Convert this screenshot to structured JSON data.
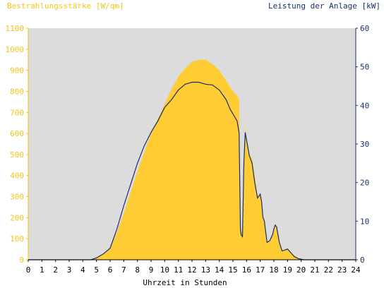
{
  "chart_data": {
    "type": "area",
    "y_left_label": "Bestrahlungsstärke [W/qm]",
    "y_right_label": "Leistung der Anlage [kW]",
    "xlabel": "Uhrzeit in Stunden",
    "xlim": [
      0,
      24
    ],
    "ylim_left": [
      0,
      1100
    ],
    "ylim_right": [
      0,
      60
    ],
    "x_ticks": [
      0,
      1,
      2,
      3,
      4,
      5,
      6,
      7,
      8,
      9,
      10,
      11,
      12,
      13,
      14,
      15,
      16,
      17,
      18,
      19,
      20,
      21,
      22,
      23,
      24
    ],
    "y_left_ticks": [
      0,
      100,
      200,
      300,
      400,
      500,
      600,
      700,
      800,
      900,
      1000,
      1100
    ],
    "y_right_ticks": [
      0,
      10,
      20,
      30,
      40,
      50,
      60
    ],
    "grid": false,
    "colors": {
      "plot_background": "#dcdcdc",
      "irradiance_fill": "#ffcc33",
      "power_line": "#1b2f6b",
      "left_axis": "#f4c41a",
      "right_axis": "#1b2f6b"
    },
    "series": [
      {
        "axis": "left",
        "style": "area",
        "points": [
          [
            0,
            0
          ],
          [
            4.6,
            0
          ],
          [
            5.0,
            10
          ],
          [
            5.5,
            25
          ],
          [
            6.0,
            60
          ],
          [
            6.5,
            130
          ],
          [
            7.0,
            220
          ],
          [
            7.5,
            320
          ],
          [
            8.0,
            420
          ],
          [
            8.5,
            510
          ],
          [
            9.0,
            600
          ],
          [
            9.5,
            670
          ],
          [
            10.0,
            740
          ],
          [
            10.5,
            810
          ],
          [
            11.0,
            870
          ],
          [
            11.5,
            910
          ],
          [
            12.0,
            940
          ],
          [
            12.5,
            950
          ],
          [
            13.0,
            950
          ],
          [
            13.5,
            930
          ],
          [
            14.0,
            900
          ],
          [
            14.5,
            850
          ],
          [
            15.0,
            800
          ],
          [
            15.3,
            780
          ],
          [
            15.45,
            760
          ],
          [
            15.5,
            400
          ],
          [
            15.55,
            180
          ],
          [
            15.6,
            140
          ],
          [
            15.7,
            130
          ],
          [
            15.8,
            450
          ],
          [
            15.9,
            630
          ],
          [
            16.0,
            580
          ],
          [
            16.2,
            500
          ],
          [
            16.4,
            480
          ],
          [
            16.6,
            400
          ],
          [
            16.8,
            300
          ],
          [
            17.0,
            320
          ],
          [
            17.1,
            280
          ],
          [
            17.2,
            200
          ],
          [
            17.3,
            180
          ],
          [
            17.5,
            80
          ],
          [
            17.7,
            90
          ],
          [
            17.9,
            120
          ],
          [
            18.0,
            150
          ],
          [
            18.1,
            170
          ],
          [
            18.2,
            160
          ],
          [
            18.4,
            90
          ],
          [
            18.6,
            40
          ],
          [
            18.8,
            50
          ],
          [
            19.0,
            55
          ],
          [
            19.2,
            40
          ],
          [
            19.5,
            20
          ],
          [
            19.8,
            8
          ],
          [
            20.2,
            2
          ],
          [
            20.5,
            0
          ],
          [
            24,
            0
          ]
        ]
      },
      {
        "axis": "right",
        "style": "line",
        "points": [
          [
            0,
            0
          ],
          [
            4.6,
            0
          ],
          [
            5.0,
            0.5
          ],
          [
            5.5,
            1.5
          ],
          [
            6.0,
            3
          ],
          [
            6.5,
            8
          ],
          [
            7.0,
            14
          ],
          [
            7.5,
            19.5
          ],
          [
            8.0,
            25
          ],
          [
            8.5,
            29.5
          ],
          [
            9.0,
            33
          ],
          [
            9.5,
            36
          ],
          [
            10.0,
            39.5
          ],
          [
            10.5,
            41.5
          ],
          [
            11.0,
            44
          ],
          [
            11.5,
            45.5
          ],
          [
            12.0,
            46
          ],
          [
            12.5,
            46
          ],
          [
            13.0,
            45.5
          ],
          [
            13.5,
            45.3
          ],
          [
            14.0,
            44
          ],
          [
            14.5,
            41.5
          ],
          [
            14.8,
            39
          ],
          [
            15.0,
            37.8
          ],
          [
            15.3,
            36
          ],
          [
            15.45,
            33
          ],
          [
            15.5,
            20
          ],
          [
            15.55,
            8
          ],
          [
            15.6,
            6.5
          ],
          [
            15.7,
            6
          ],
          [
            15.8,
            25
          ],
          [
            15.9,
            33
          ],
          [
            16.0,
            31
          ],
          [
            16.2,
            27
          ],
          [
            16.4,
            25
          ],
          [
            16.6,
            20
          ],
          [
            16.8,
            16
          ],
          [
            17.0,
            17
          ],
          [
            17.1,
            15
          ],
          [
            17.2,
            11
          ],
          [
            17.3,
            10
          ],
          [
            17.5,
            4.5
          ],
          [
            17.7,
            5
          ],
          [
            17.9,
            6.5
          ],
          [
            18.0,
            8
          ],
          [
            18.1,
            9
          ],
          [
            18.2,
            8.5
          ],
          [
            18.4,
            4.5
          ],
          [
            18.6,
            2.3
          ],
          [
            18.8,
            2.5
          ],
          [
            19.0,
            2.8
          ],
          [
            19.2,
            2
          ],
          [
            19.5,
            0.8
          ],
          [
            19.8,
            0.3
          ],
          [
            20.2,
            0
          ],
          [
            24,
            0
          ]
        ]
      }
    ]
  }
}
